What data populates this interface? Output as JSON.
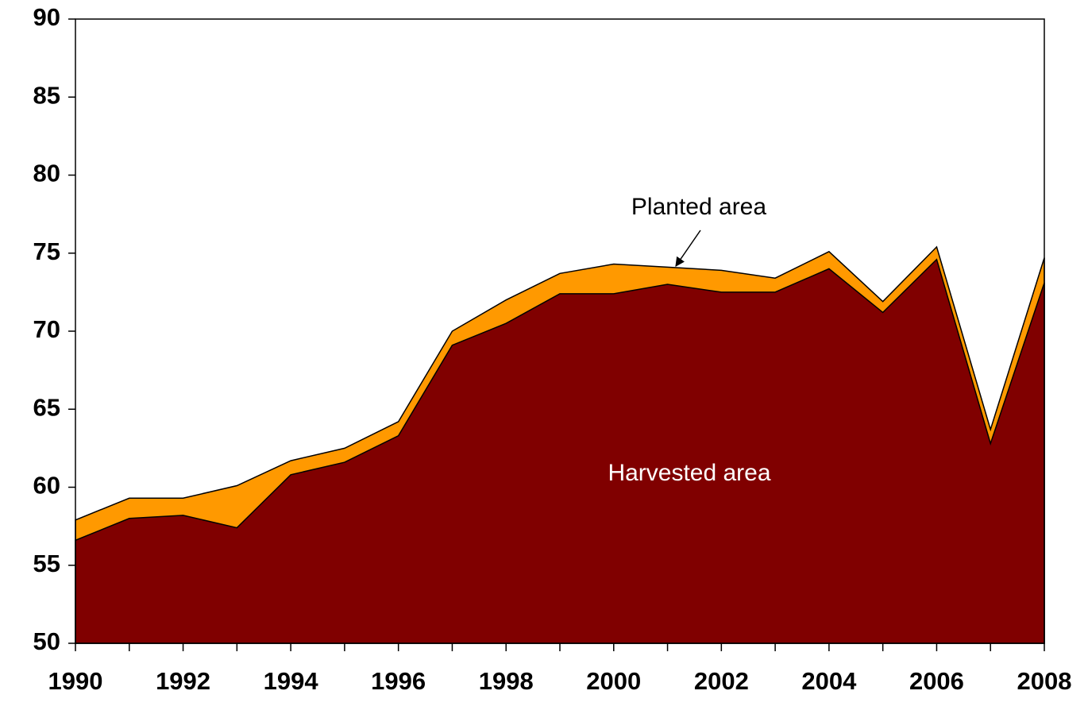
{
  "chart_data": {
    "type": "area",
    "x": [
      1990,
      1991,
      1992,
      1993,
      1994,
      1995,
      1996,
      1997,
      1998,
      1999,
      2000,
      2001,
      2002,
      2003,
      2004,
      2005,
      2006,
      2007,
      2008
    ],
    "series": [
      {
        "name": "Planted area",
        "color": "#ff9900",
        "values": [
          57.9,
          59.3,
          59.3,
          60.1,
          61.7,
          62.5,
          64.2,
          70.0,
          72.0,
          73.7,
          74.3,
          74.1,
          73.9,
          73.4,
          75.1,
          71.9,
          75.4,
          63.7,
          74.7
        ]
      },
      {
        "name": "Harvested area",
        "color": "#800000",
        "values": [
          56.6,
          58.0,
          58.2,
          57.4,
          60.8,
          61.6,
          63.3,
          69.1,
          70.5,
          72.4,
          72.4,
          73.0,
          72.5,
          72.5,
          74.0,
          71.2,
          74.6,
          62.8,
          73.1
        ]
      }
    ],
    "xlim": [
      1990,
      2008
    ],
    "xticks": [
      1990,
      1992,
      1994,
      1996,
      1998,
      2000,
      2002,
      2004,
      2006,
      2008
    ],
    "ylim": [
      50,
      90
    ],
    "yticks": [
      50,
      55,
      60,
      65,
      70,
      75,
      80,
      85,
      90
    ],
    "annotations": [
      {
        "text": "Planted area"
      },
      {
        "text": "Harvested area"
      }
    ]
  }
}
